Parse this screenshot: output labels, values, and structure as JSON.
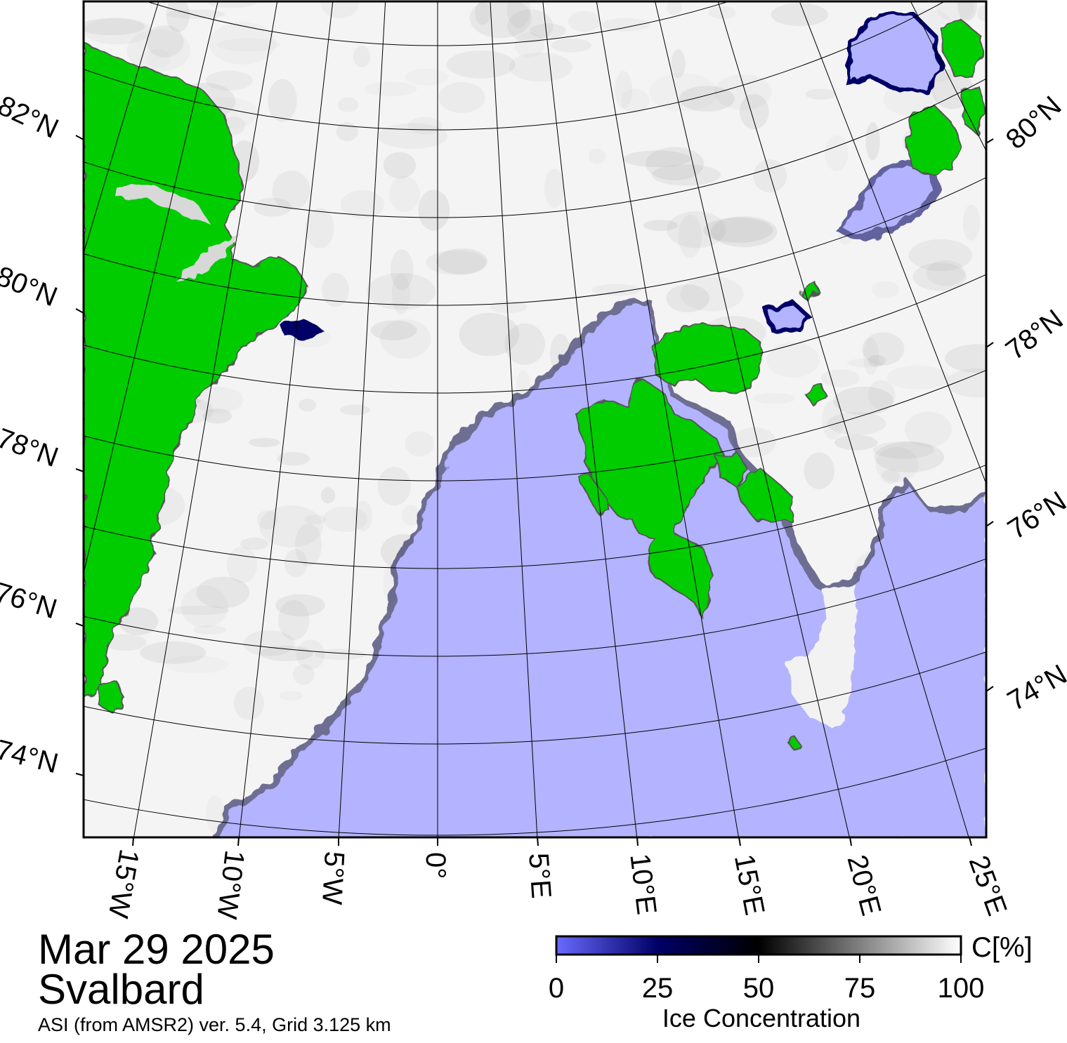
{
  "map": {
    "date": "Mar 29 2025",
    "region": "Svalbard",
    "source": "ASI (from AMSR2) ver. 5.4,  Grid 3.125 km",
    "colors": {
      "land": "#00cc00",
      "open_water": "#b3b3ff",
      "ice_full": "#ffffff",
      "ice_mid": "#000000",
      "ice_low": "#000066",
      "frame": "#000000"
    },
    "latitude_labels_left": [
      "82°N",
      "80°N",
      "78°N",
      "76°N",
      "74°N"
    ],
    "latitude_labels_right": [
      "80°N",
      "78°N",
      "76°N",
      "74°N"
    ],
    "longitude_labels": [
      "15°W",
      "10°W",
      "5°W",
      "0°",
      "5°E",
      "10°E",
      "15°E",
      "20°E",
      "25°E"
    ]
  },
  "colorbar": {
    "unit": "C[%]",
    "label": "Ice Concentration",
    "ticks": [
      "0",
      "25",
      "50",
      "75",
      "100"
    ],
    "stops": [
      "#6a6aff",
      "#000066",
      "#000000",
      "#808080",
      "#ffffff"
    ]
  }
}
